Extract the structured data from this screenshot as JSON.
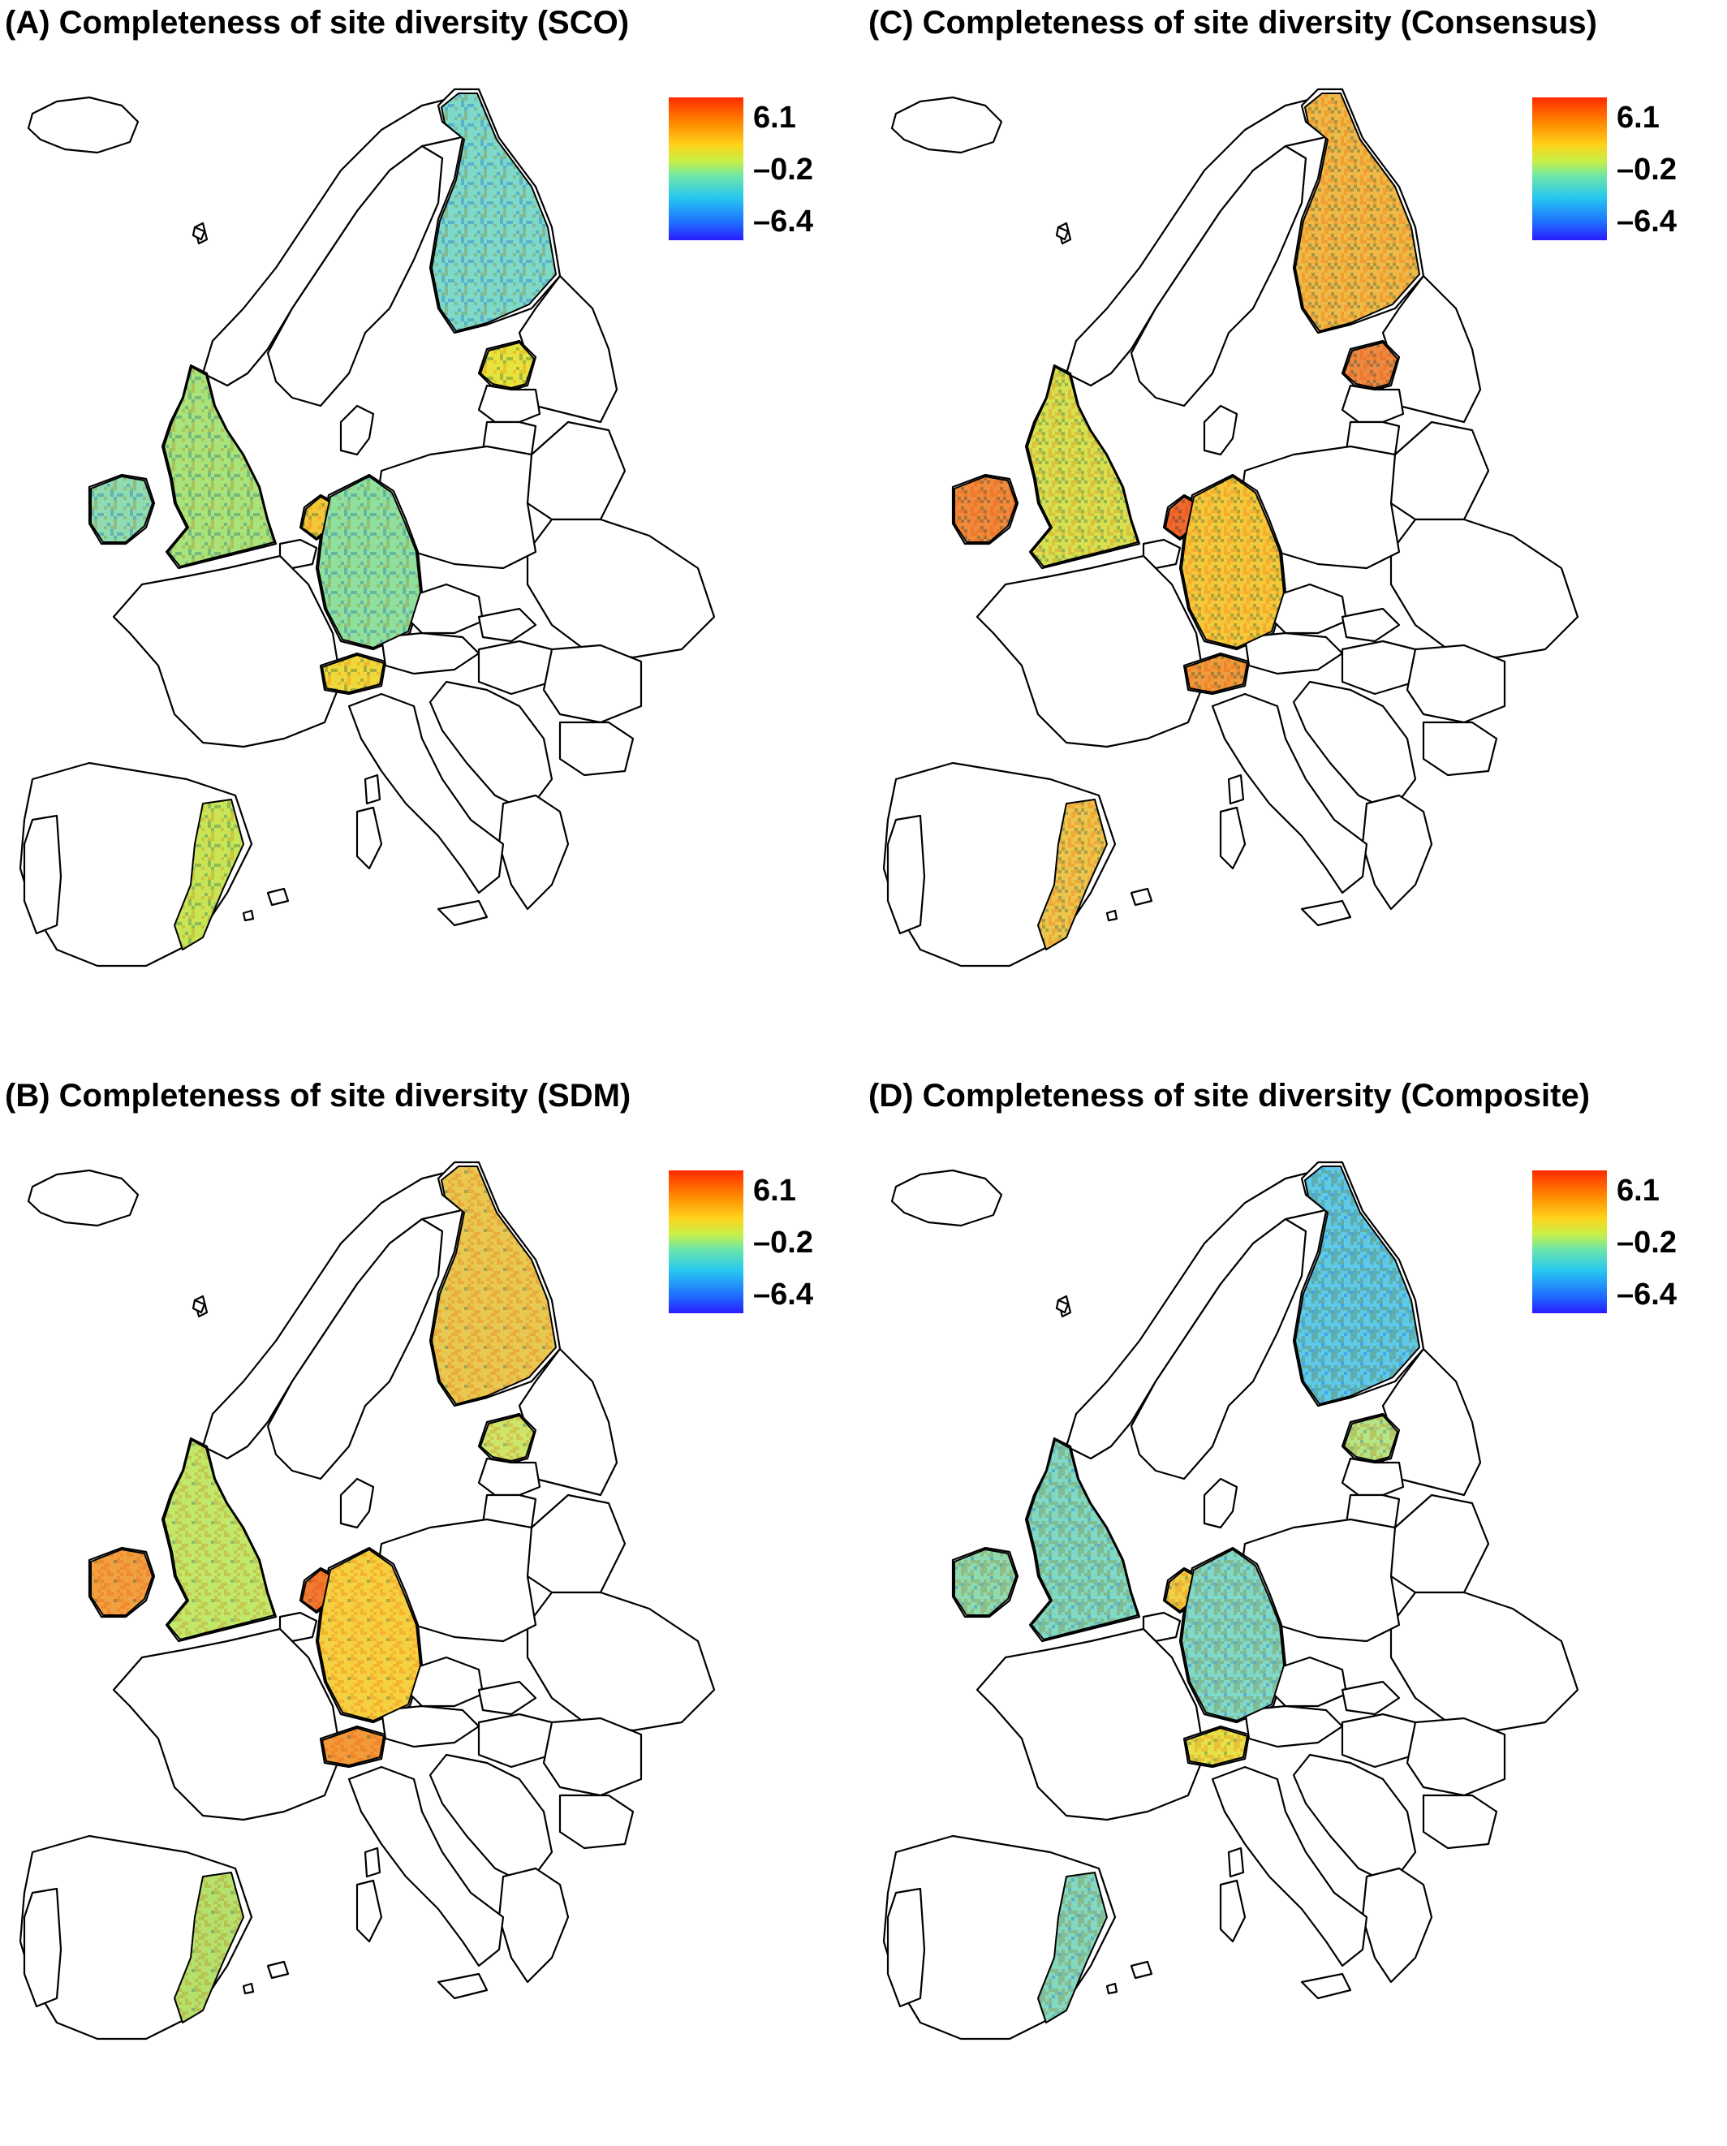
{
  "panels": [
    {
      "title": "(A) Completeness of site diversity (SCO)",
      "colors": {
        "finland": "#7fd9c8",
        "estonia": "#e8e23c",
        "uk": "#a9e37a",
        "ireland": "#8fdcb0",
        "netherlands": "#f2c838",
        "germany": "#8fe09e",
        "switzerland": "#efd83a",
        "spain": "#c9e556"
      }
    },
    {
      "title": "(B) Completeness of site diversity (SDM)",
      "colors": {
        "finland": "#e8c850",
        "estonia": "#cfe56a",
        "uk": "#c2e86a",
        "ireland": "#f0a040",
        "netherlands": "#f07a30",
        "germany": "#f5d040",
        "switzerland": "#f29a38",
        "spain": "#b6e06c"
      }
    },
    {
      "title": "(C) Completeness of site diversity (Consensus)",
      "colors": {
        "finland": "#f0b844",
        "estonia": "#ee8a40",
        "uk": "#d8e050",
        "ireland": "#f08a3a",
        "netherlands": "#f06a2e",
        "germany": "#f5c83a",
        "switzerland": "#f09a3a",
        "spain": "#eec44a"
      }
    },
    {
      "title": "(D) Completeness of site diversity (Composite)",
      "colors": {
        "finland": "#5fc9e8",
        "estonia": "#b5e586",
        "uk": "#7fd9c4",
        "ireland": "#8edbb2",
        "netherlands": "#efd045",
        "germany": "#80d8c8",
        "switzerland": "#e8e048",
        "spain": "#84d8c0"
      }
    }
  ],
  "legend": {
    "max_label": "6.1",
    "mid_label": "–0.2",
    "min_label": "–6.4",
    "colors": [
      "#ff2a00",
      "#ffd21a",
      "#6fe6a8",
      "#2a1cff"
    ]
  }
}
